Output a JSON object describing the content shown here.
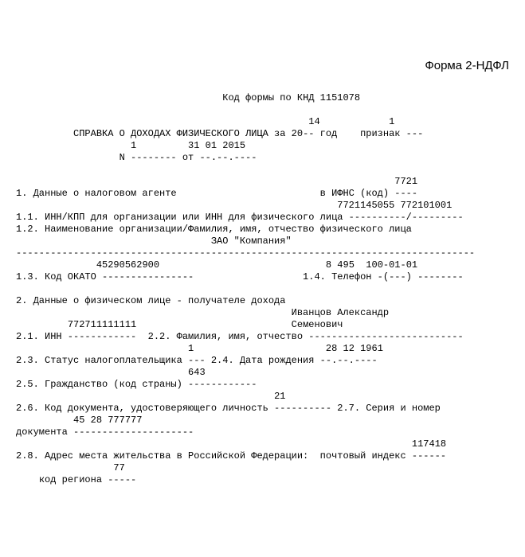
{
  "form_title": "Форма 2-НДФЛ",
  "knd_line": "Код формы по КНД 1151078",
  "year": "14",
  "priznak": "1",
  "header_line": "СПРАВКА О ДОХОДАХ ФИЗИЧЕСКОГО ЛИЦА за 20-- год    признак ---",
  "n_num": "1",
  "n_date": "31 01 2015",
  "n_line": "N -------- от --.--.----",
  "ifns_code": "7721",
  "section1": "1. Данные о налоговом агенте                         в ИФНС (код) ----",
  "inn_kpp_val": "7721145055 772101001",
  "section1_1": "1.1. ИНН/КПП для организации или ИНН для физического лица ----------/---------",
  "section1_2": "1.2. Наименование организации/Фамилия, имя, отчество физического лица",
  "org_name": "ЗАО \"Компания\"",
  "dashes_full": "--------------------------------------------------------------------------------",
  "okato_val": "45290562900",
  "tel_val": "8 495  100-01-01",
  "section1_3": "1.3. Код ОКАТО ----------------                   1.4. Телефон -(---) --------",
  "section2": "2. Данные о физическом лице - получателе дохода",
  "fio_val": "Иванцов Александр",
  "inn_val": "772711111111",
  "fio_val2": "Семенович",
  "section2_1": "2.1. ИНН ------------  2.2. Фамилия, имя, отчество ---------------------------",
  "status_val": "1",
  "dob_val": "28 12 1961",
  "section2_3": "2.3. Статус налогоплательщика --- 2.4. Дата рождения --.--.----",
  "country_val": "643",
  "section2_5": "2.5. Гражданство (код страны) ------------",
  "doc_code_val": "21",
  "section2_6": "2.6. Код документа, удостоверяющего личность ---------- 2.7. Серия и номер",
  "doc_serial_val": "45 28 777777",
  "doc_line": "документа ---------------------",
  "postindex_val": "117418",
  "section2_8": "2.8. Адрес места жительства в Российской Федерации:  почтовый индекс ------",
  "region_val": "77",
  "region_line": "код региона -----"
}
